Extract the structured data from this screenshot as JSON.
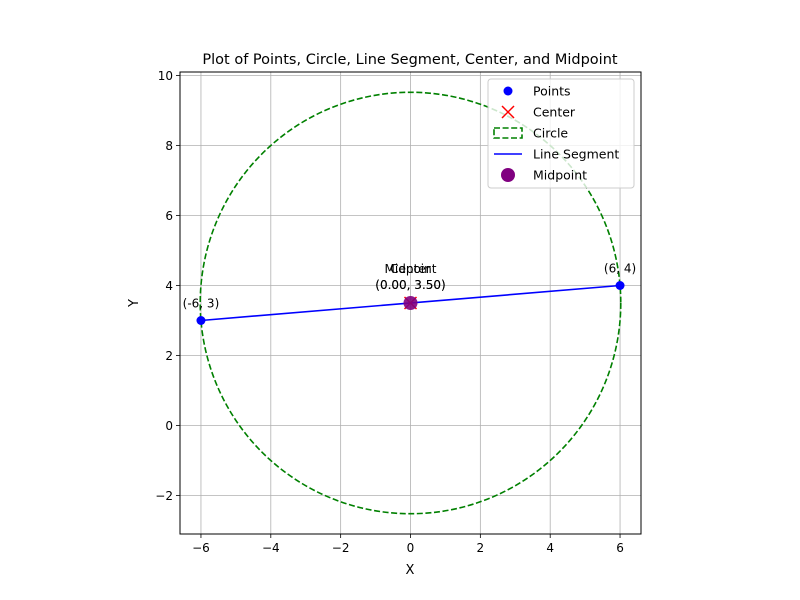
{
  "chart_data": {
    "type": "scatter",
    "title": "Plot of Points, Circle, Line Segment, Center, and Midpoint",
    "xlabel": "X",
    "ylabel": "Y",
    "xlim": [
      -6.6,
      6.6
    ],
    "ylim": [
      -3.1,
      10.1
    ],
    "xticks": [
      -6,
      -4,
      -2,
      0,
      2,
      4,
      6
    ],
    "yticks": [
      -2,
      0,
      2,
      4,
      6,
      8,
      10
    ],
    "xtick_labels": [
      "−6",
      "−4",
      "−2",
      "0",
      "2",
      "4",
      "6"
    ],
    "ytick_labels": [
      "−2",
      "0",
      "2",
      "4",
      "6",
      "8",
      "10"
    ],
    "grid": true,
    "legend_position": "upper right",
    "points": {
      "name": "Points",
      "color": "#0000ff",
      "data": [
        {
          "x": -6,
          "y": 3,
          "label": "(-6, 3)"
        },
        {
          "x": 6,
          "y": 4,
          "label": "(6, 4)"
        }
      ]
    },
    "center": {
      "name": "Center",
      "color": "#ff0000",
      "marker": "x",
      "x": 0,
      "y": 3.5,
      "annotation": [
        "Center",
        "(0.00, 3.50)"
      ]
    },
    "circle": {
      "name": "Circle",
      "color": "#008000",
      "style": "dashed",
      "cx": 0,
      "cy": 3.5,
      "r": 6.0208
    },
    "line_segment": {
      "name": "Line Segment",
      "color": "#0000ff",
      "from": [
        -6,
        3
      ],
      "to": [
        6,
        4
      ]
    },
    "midpoint": {
      "name": "Midpoint",
      "color": "#800080",
      "x": 0,
      "y": 3.5,
      "annotation": [
        "Midpoint",
        "(0.00, 3.50)"
      ]
    },
    "legend": [
      "Points",
      "Center",
      "Circle",
      "Line Segment",
      "Midpoint"
    ]
  }
}
